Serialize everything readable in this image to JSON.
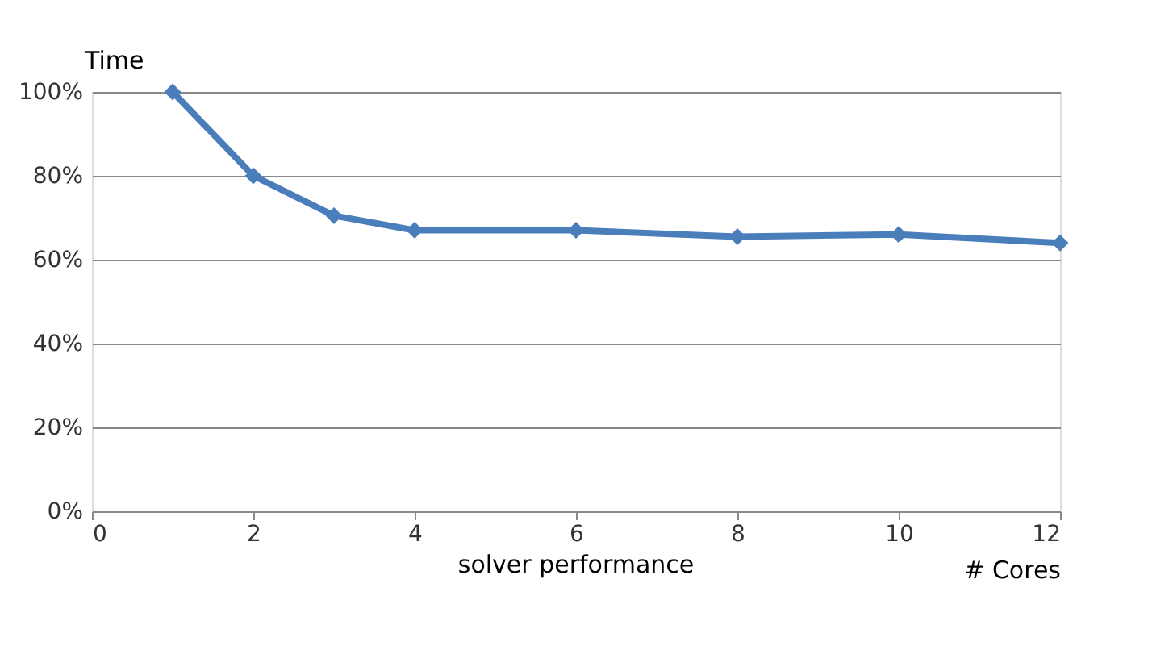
{
  "chart_data": {
    "type": "line",
    "title": "solver performance",
    "xlabel": "# Cores",
    "ylabel": "Time",
    "x": [
      1,
      2,
      3,
      4,
      6,
      8,
      10,
      12
    ],
    "series": [
      {
        "color": "#4a7ebb",
        "values": [
          100,
          80,
          70.5,
          67,
          67,
          65.5,
          66,
          64
        ]
      }
    ],
    "xlim": [
      0,
      12
    ],
    "xticks": [
      0,
      2,
      4,
      6,
      8,
      10,
      12
    ],
    "ylim": [
      0,
      100
    ],
    "yticks": [
      {
        "value": 0,
        "label": "0%"
      },
      {
        "value": 20,
        "label": "20%"
      },
      {
        "value": 40,
        "label": "40%"
      },
      {
        "value": 60,
        "label": "60%"
      },
      {
        "value": 80,
        "label": "80%"
      },
      {
        "value": 100,
        "label": "100%"
      }
    ],
    "grid": "y",
    "marker": "diamond",
    "line_style": "solid"
  }
}
